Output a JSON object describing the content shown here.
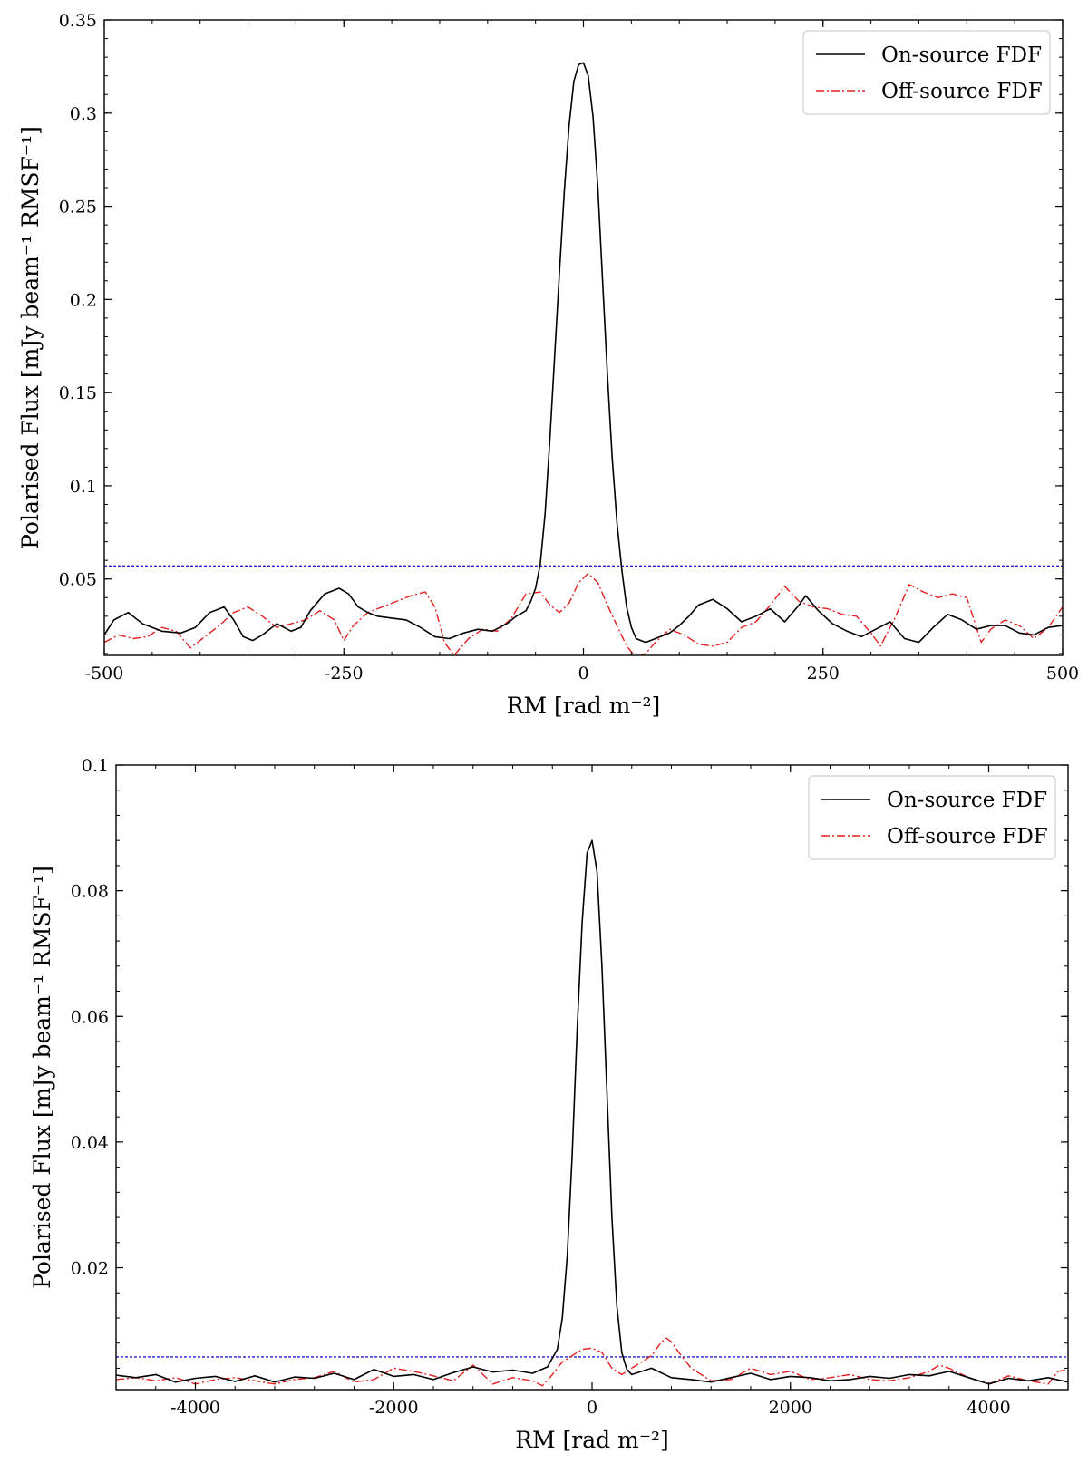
{
  "chart_data": [
    {
      "type": "line",
      "xlabel": "RM [rad m⁻²]",
      "ylabel": "Polarised Flux [mJy beam⁻¹ RMSF⁻¹]",
      "xlim": [
        -500,
        500
      ],
      "ylim": [
        0.009,
        0.35
      ],
      "xticks": [
        -500,
        -250,
        0,
        250,
        500
      ],
      "xtick_labels": [
        "-500",
        "-250",
        "0",
        "250",
        "500"
      ],
      "yticks": [
        0.05,
        0.1,
        0.15,
        0.2,
        0.25,
        0.3,
        0.35
      ],
      "ytick_labels": [
        "0.05",
        "0.1",
        "0.15",
        "0.2",
        "0.25",
        "0.3",
        "0.35"
      ],
      "grid": false,
      "legend_position": "top-right",
      "threshold": 0.057,
      "colors": {
        "on": "#000000",
        "off": "#e32020",
        "threshold": "#1f1fd6"
      },
      "series": [
        {
          "name": "On-source FDF",
          "style": "solid",
          "x": [
            -500,
            -490,
            -475,
            -460,
            -440,
            -420,
            -405,
            -390,
            -375,
            -365,
            -355,
            -345,
            -335,
            -320,
            -305,
            -295,
            -285,
            -270,
            -255,
            -245,
            -235,
            -225,
            -215,
            -200,
            -185,
            -170,
            -155,
            -140,
            -125,
            -110,
            -95,
            -80,
            -70,
            -60,
            -55,
            -50,
            -45,
            -40,
            -35,
            -30,
            -25,
            -20,
            -15,
            -10,
            -5,
            0,
            5,
            10,
            15,
            20,
            25,
            30,
            35,
            40,
            45,
            50,
            55,
            60,
            65,
            70,
            80,
            90,
            100,
            110,
            120,
            135,
            150,
            165,
            180,
            195,
            210,
            225,
            232,
            245,
            260,
            275,
            290,
            305,
            320,
            335,
            350,
            365,
            380,
            395,
            410,
            425,
            440,
            455,
            470,
            485,
            500
          ],
          "y": [
            0.02,
            0.028,
            0.032,
            0.026,
            0.022,
            0.021,
            0.024,
            0.032,
            0.035,
            0.028,
            0.019,
            0.017,
            0.02,
            0.026,
            0.022,
            0.024,
            0.033,
            0.042,
            0.045,
            0.042,
            0.035,
            0.032,
            0.03,
            0.029,
            0.028,
            0.024,
            0.019,
            0.018,
            0.021,
            0.023,
            0.022,
            0.026,
            0.03,
            0.033,
            0.038,
            0.045,
            0.058,
            0.085,
            0.125,
            0.17,
            0.215,
            0.258,
            0.293,
            0.317,
            0.326,
            0.327,
            0.32,
            0.298,
            0.26,
            0.21,
            0.16,
            0.115,
            0.08,
            0.055,
            0.035,
            0.024,
            0.018,
            0.017,
            0.016,
            0.017,
            0.019,
            0.021,
            0.025,
            0.03,
            0.036,
            0.039,
            0.034,
            0.027,
            0.03,
            0.034,
            0.027,
            0.036,
            0.041,
            0.033,
            0.026,
            0.022,
            0.019,
            0.023,
            0.027,
            0.018,
            0.016,
            0.024,
            0.031,
            0.028,
            0.023,
            0.025,
            0.025,
            0.021,
            0.02,
            0.024,
            0.025
          ]
        },
        {
          "name": "Off-source FDF",
          "style": "dashdot",
          "x": [
            -500,
            -485,
            -470,
            -455,
            -440,
            -425,
            -410,
            -395,
            -380,
            -365,
            -350,
            -335,
            -320,
            -305,
            -290,
            -275,
            -260,
            -250,
            -240,
            -225,
            -210,
            -195,
            -180,
            -165,
            -155,
            -145,
            -135,
            -120,
            -105,
            -90,
            -75,
            -60,
            -45,
            -35,
            -25,
            -15,
            -5,
            5,
            15,
            25,
            35,
            45,
            55,
            65,
            75,
            90,
            105,
            120,
            135,
            150,
            165,
            180,
            195,
            210,
            225,
            240,
            255,
            270,
            285,
            300,
            310,
            325,
            340,
            355,
            370,
            385,
            400,
            415,
            425,
            440,
            455,
            470,
            485,
            500
          ],
          "y": [
            0.016,
            0.02,
            0.018,
            0.019,
            0.024,
            0.022,
            0.013,
            0.019,
            0.025,
            0.032,
            0.035,
            0.03,
            0.024,
            0.026,
            0.028,
            0.033,
            0.028,
            0.017,
            0.025,
            0.032,
            0.035,
            0.038,
            0.041,
            0.043,
            0.035,
            0.016,
            0.009,
            0.018,
            0.023,
            0.022,
            0.029,
            0.042,
            0.043,
            0.036,
            0.032,
            0.037,
            0.048,
            0.053,
            0.048,
            0.036,
            0.025,
            0.014,
            0.008,
            0.01,
            0.016,
            0.023,
            0.02,
            0.015,
            0.014,
            0.016,
            0.024,
            0.027,
            0.036,
            0.046,
            0.038,
            0.035,
            0.034,
            0.031,
            0.03,
            0.021,
            0.014,
            0.029,
            0.047,
            0.043,
            0.04,
            0.042,
            0.04,
            0.016,
            0.023,
            0.028,
            0.025,
            0.018,
            0.024,
            0.035
          ]
        }
      ]
    },
    {
      "type": "line",
      "xlabel": "RM [rad m⁻²]",
      "ylabel": "Polarised Flux [mJy beam⁻¹ RMSF⁻¹]",
      "xlim": [
        -4800,
        4800
      ],
      "ylim": [
        0.0006,
        0.1
      ],
      "xticks": [
        -4000,
        -2000,
        0,
        2000,
        4000
      ],
      "xtick_labels": [
        "-4000",
        "-2000",
        "0",
        "2000",
        "4000"
      ],
      "yticks": [
        0.02,
        0.04,
        0.06,
        0.08,
        0.1
      ],
      "ytick_labels": [
        "0.02",
        "0.04",
        "0.06",
        "0.08",
        "0.1"
      ],
      "grid": false,
      "legend_position": "top-right",
      "threshold": 0.0058,
      "colors": {
        "on": "#000000",
        "off": "#e32020",
        "threshold": "#1f1fd6"
      },
      "series": [
        {
          "name": "On-source FDF",
          "style": "solid",
          "x": [
            -4800,
            -4600,
            -4400,
            -4200,
            -4000,
            -3800,
            -3600,
            -3400,
            -3200,
            -3000,
            -2800,
            -2600,
            -2400,
            -2200,
            -2000,
            -1800,
            -1600,
            -1400,
            -1200,
            -1000,
            -800,
            -600,
            -450,
            -350,
            -300,
            -250,
            -200,
            -150,
            -100,
            -50,
            0,
            50,
            100,
            150,
            200,
            250,
            300,
            350,
            400,
            500,
            600,
            800,
            1000,
            1200,
            1400,
            1600,
            1800,
            2000,
            2200,
            2400,
            2600,
            2800,
            3000,
            3200,
            3400,
            3600,
            3800,
            4000,
            4200,
            4400,
            4600,
            4800
          ],
          "y": [
            0.0029,
            0.0025,
            0.003,
            0.0018,
            0.0024,
            0.0027,
            0.0019,
            0.0028,
            0.0018,
            0.0026,
            0.0024,
            0.0032,
            0.0022,
            0.0038,
            0.0027,
            0.003,
            0.0022,
            0.0033,
            0.0042,
            0.0034,
            0.0037,
            0.0032,
            0.0042,
            0.007,
            0.012,
            0.022,
            0.038,
            0.058,
            0.075,
            0.086,
            0.088,
            0.083,
            0.068,
            0.048,
            0.028,
            0.014,
            0.0065,
            0.0038,
            0.003,
            0.0035,
            0.004,
            0.0025,
            0.0022,
            0.0018,
            0.0025,
            0.0032,
            0.0022,
            0.0027,
            0.0025,
            0.002,
            0.0022,
            0.0027,
            0.0024,
            0.003,
            0.0028,
            0.0035,
            0.0025,
            0.0015,
            0.0024,
            0.002,
            0.0025,
            0.0018
          ]
        },
        {
          "name": "Off-source FDF",
          "style": "dashdot",
          "x": [
            -4800,
            -4600,
            -4400,
            -4200,
            -4000,
            -3800,
            -3600,
            -3400,
            -3200,
            -3000,
            -2800,
            -2600,
            -2400,
            -2200,
            -2000,
            -1800,
            -1600,
            -1400,
            -1200,
            -1000,
            -800,
            -600,
            -500,
            -400,
            -300,
            -200,
            -100,
            0,
            100,
            200,
            300,
            400,
            500,
            600,
            700,
            750,
            800,
            900,
            1000,
            1200,
            1400,
            1600,
            1800,
            2000,
            2200,
            2400,
            2600,
            2800,
            3000,
            3200,
            3400,
            3500,
            3600,
            3800,
            4000,
            4200,
            4400,
            4600,
            4700,
            4800
          ],
          "y": [
            0.0022,
            0.0025,
            0.002,
            0.0025,
            0.0015,
            0.0022,
            0.0025,
            0.002,
            0.0015,
            0.0022,
            0.0025,
            0.0035,
            0.0018,
            0.0022,
            0.004,
            0.0035,
            0.0028,
            0.002,
            0.0045,
            0.0015,
            0.0025,
            0.002,
            0.0012,
            0.003,
            0.005,
            0.006,
            0.007,
            0.0072,
            0.0065,
            0.004,
            0.003,
            0.004,
            0.005,
            0.006,
            0.0082,
            0.0088,
            0.0082,
            0.006,
            0.004,
            0.002,
            0.0022,
            0.004,
            0.003,
            0.0035,
            0.0022,
            0.0025,
            0.003,
            0.0022,
            0.002,
            0.0025,
            0.0035,
            0.0045,
            0.004,
            0.0025,
            0.0015,
            0.0028,
            0.002,
            0.0015,
            0.0035,
            0.0038
          ]
        }
      ]
    }
  ]
}
